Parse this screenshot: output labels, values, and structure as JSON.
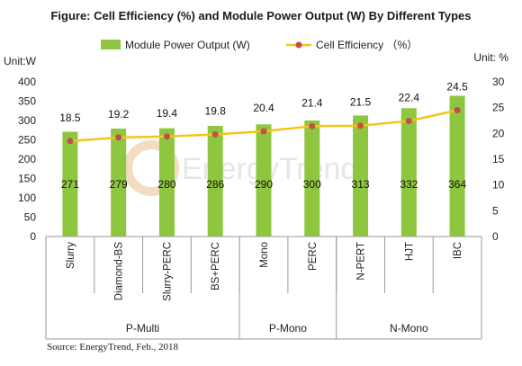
{
  "chart_data": {
    "type": "bar",
    "title": "Figure: Cell Efficiency (%) and Module Power Output (W) By Different Types",
    "categories": [
      "Slurry",
      "Diamond-BS",
      "Slurry-PERC",
      "BS+PERC",
      "Mono",
      "PERC",
      "N-PERT",
      "HJT",
      "IBC"
    ],
    "groups": [
      {
        "label": "P-Multi",
        "span": 4
      },
      {
        "label": "P-Mono",
        "span": 2
      },
      {
        "label": "N-Mono",
        "span": 3
      }
    ],
    "series": [
      {
        "name": "Module Power Output (W)",
        "type": "bar",
        "axis": "left",
        "color": "#8fc63f",
        "values": [
          271,
          279,
          280,
          286,
          290,
          300,
          313,
          332,
          364
        ]
      },
      {
        "name": "Cell Efficiency （%）",
        "type": "line",
        "axis": "right",
        "color": "#f5c518",
        "marker_color": "#c0504d",
        "values": [
          18.5,
          19.2,
          19.4,
          19.8,
          20.4,
          21.4,
          21.5,
          22.4,
          24.5
        ]
      }
    ],
    "y_left": {
      "unit_label": "Unit:W",
      "range": [
        0,
        400
      ],
      "ticks": [
        0,
        50,
        100,
        150,
        200,
        250,
        300,
        350,
        400
      ]
    },
    "y_right": {
      "unit_label": "Unit: %",
      "range": [
        0,
        30
      ],
      "ticks": [
        0,
        5,
        10,
        15,
        20,
        25,
        30
      ]
    },
    "legend_position": "top",
    "grid": false
  },
  "source": "Source: EnergyTrend, Feb., 2018",
  "watermark": "EnergyTrend"
}
